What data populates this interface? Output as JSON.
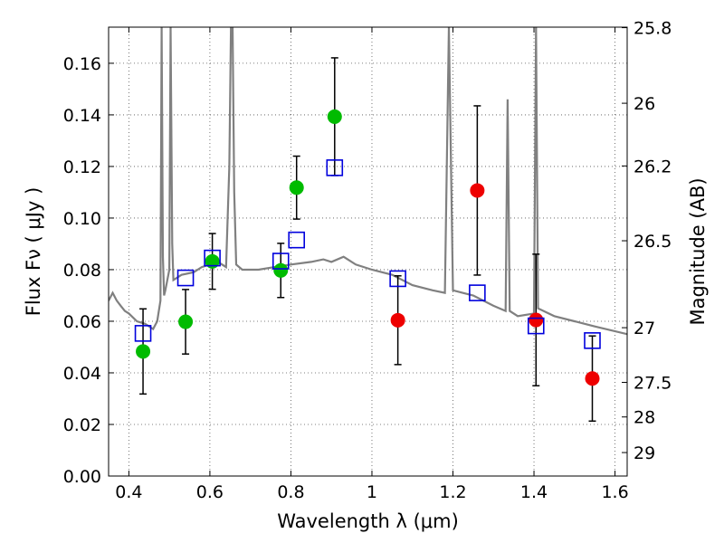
{
  "chart_data": {
    "type": "scatter",
    "title": "",
    "xlabel": "Wavelength  λ (μm)",
    "ylabel": "Flux  Fν  ( μJy )",
    "y2label": "Magnitude (AB)",
    "xlim": [
      0.35,
      1.63
    ],
    "ylim": [
      0.0,
      0.174
    ],
    "grid": true,
    "x_ticks": [
      0.4,
      0.6,
      0.8,
      1.0,
      1.2,
      1.4,
      1.6
    ],
    "x_tick_labels": [
      "0.4",
      "0.6",
      "0.8",
      "1",
      "1.2",
      "1.4",
      "1.6"
    ],
    "y_ticks": [
      0.0,
      0.02,
      0.04,
      0.06,
      0.08,
      0.1,
      0.12,
      0.14,
      0.16
    ],
    "y_tick_labels": [
      "0.00",
      "0.02",
      "0.04",
      "0.06",
      "0.08",
      "0.10",
      "0.12",
      "0.14",
      "0.16"
    ],
    "y2_ticks": [
      {
        "label": "25.8",
        "flux": 0.1738
      },
      {
        "label": "26",
        "flux": 0.1445
      },
      {
        "label": "26.2",
        "flux": 0.1202
      },
      {
        "label": "26.5",
        "flux": 0.0912
      },
      {
        "label": "27",
        "flux": 0.0575
      },
      {
        "label": "27.5",
        "flux": 0.0363
      },
      {
        "label": "28",
        "flux": 0.0229
      },
      {
        "label": "29",
        "flux": 0.0091
      }
    ],
    "colors": {
      "green": "#00bb00",
      "red": "#ee0000",
      "model": "#808080",
      "box": "#0000dd",
      "grid": "#555555"
    },
    "series": [
      {
        "marker": "circle",
        "color": "#00bb00",
        "points": [
          {
            "x": 0.435,
            "y": 0.0483,
            "err": 0.0165
          },
          {
            "x": 0.54,
            "y": 0.0598,
            "err": 0.0125
          },
          {
            "x": 0.606,
            "y": 0.0832,
            "err": 0.0108
          },
          {
            "x": 0.775,
            "y": 0.0797,
            "err": 0.0105
          },
          {
            "x": 0.814,
            "y": 0.1118,
            "err": 0.0122
          },
          {
            "x": 0.908,
            "y": 0.1393,
            "err": 0.0228
          }
        ]
      },
      {
        "marker": "circle",
        "color": "#ee0000",
        "points": [
          {
            "x": 1.064,
            "y": 0.0604,
            "err": 0.0172
          },
          {
            "x": 1.26,
            "y": 0.1107,
            "err": 0.0328
          },
          {
            "x": 1.405,
            "y": 0.0605,
            "err": 0.0255
          },
          {
            "x": 1.544,
            "y": 0.0378,
            "err": 0.0165
          }
        ]
      },
      {
        "marker": "open-square",
        "color": "#0000dd",
        "points": [
          {
            "x": 0.435,
            "y": 0.0553
          },
          {
            "x": 0.54,
            "y": 0.0768
          },
          {
            "x": 0.606,
            "y": 0.0845
          },
          {
            "x": 0.775,
            "y": 0.0833
          },
          {
            "x": 0.814,
            "y": 0.0915
          },
          {
            "x": 0.908,
            "y": 0.1195
          },
          {
            "x": 1.064,
            "y": 0.0765
          },
          {
            "x": 1.26,
            "y": 0.071
          },
          {
            "x": 1.405,
            "y": 0.0582
          },
          {
            "x": 1.544,
            "y": 0.0525
          }
        ]
      }
    ],
    "model_spectrum": {
      "color": "#808080",
      "x": [
        0.35,
        0.36,
        0.37,
        0.38,
        0.39,
        0.4,
        0.42,
        0.44,
        0.46,
        0.47,
        0.478,
        0.481,
        0.484,
        0.487,
        0.49,
        0.5,
        0.503,
        0.507,
        0.51,
        0.53,
        0.56,
        0.58,
        0.6,
        0.62,
        0.64,
        0.648,
        0.652,
        0.656,
        0.66,
        0.665,
        0.68,
        0.72,
        0.76,
        0.8,
        0.85,
        0.88,
        0.9,
        0.93,
        0.96,
        1.0,
        1.05,
        1.1,
        1.15,
        1.18,
        1.19,
        1.2,
        1.25,
        1.3,
        1.33,
        1.335,
        1.34,
        1.36,
        1.4,
        1.405,
        1.41,
        1.45,
        1.5,
        1.55,
        1.63
      ],
      "y": [
        0.068,
        0.071,
        0.068,
        0.066,
        0.064,
        0.063,
        0.06,
        0.059,
        0.057,
        0.06,
        0.068,
        0.174,
        0.085,
        0.07,
        0.072,
        0.08,
        0.174,
        0.09,
        0.076,
        0.078,
        0.079,
        0.081,
        0.082,
        0.083,
        0.081,
        0.12,
        0.174,
        0.174,
        0.11,
        0.082,
        0.08,
        0.08,
        0.081,
        0.082,
        0.083,
        0.084,
        0.083,
        0.085,
        0.082,
        0.08,
        0.078,
        0.074,
        0.072,
        0.071,
        0.174,
        0.072,
        0.07,
        0.066,
        0.064,
        0.146,
        0.064,
        0.062,
        0.063,
        0.174,
        0.065,
        0.062,
        0.06,
        0.058,
        0.055
      ]
    }
  }
}
